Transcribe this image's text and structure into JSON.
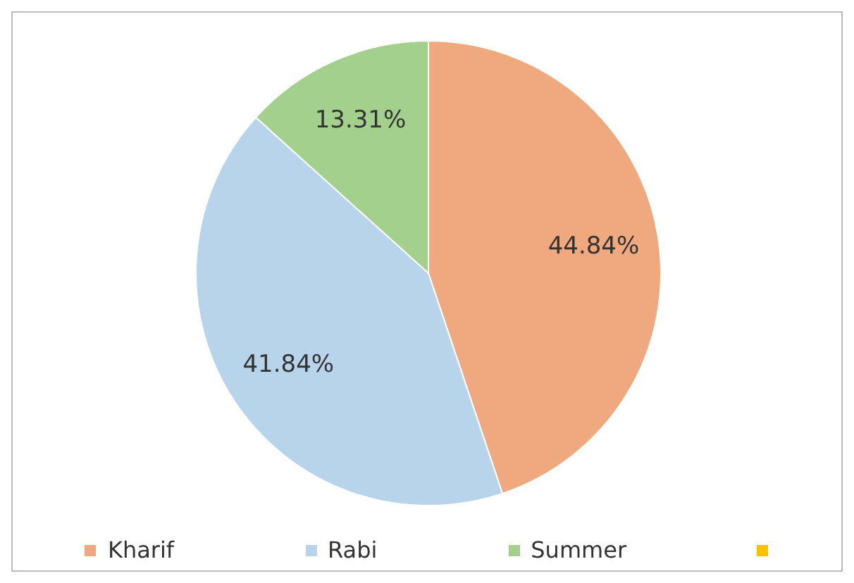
{
  "chart_data": {
    "type": "pie",
    "categories": [
      "Kharif",
      "Rabi",
      "Summer"
    ],
    "values": [
      44.84,
      41.84,
      13.31
    ],
    "colors": [
      "#f0a97e",
      "#b7d4ea",
      "#a3d08c"
    ],
    "value_labels": [
      "44.84%",
      "41.84%",
      "13.31%"
    ],
    "legend": "bottom"
  }
}
